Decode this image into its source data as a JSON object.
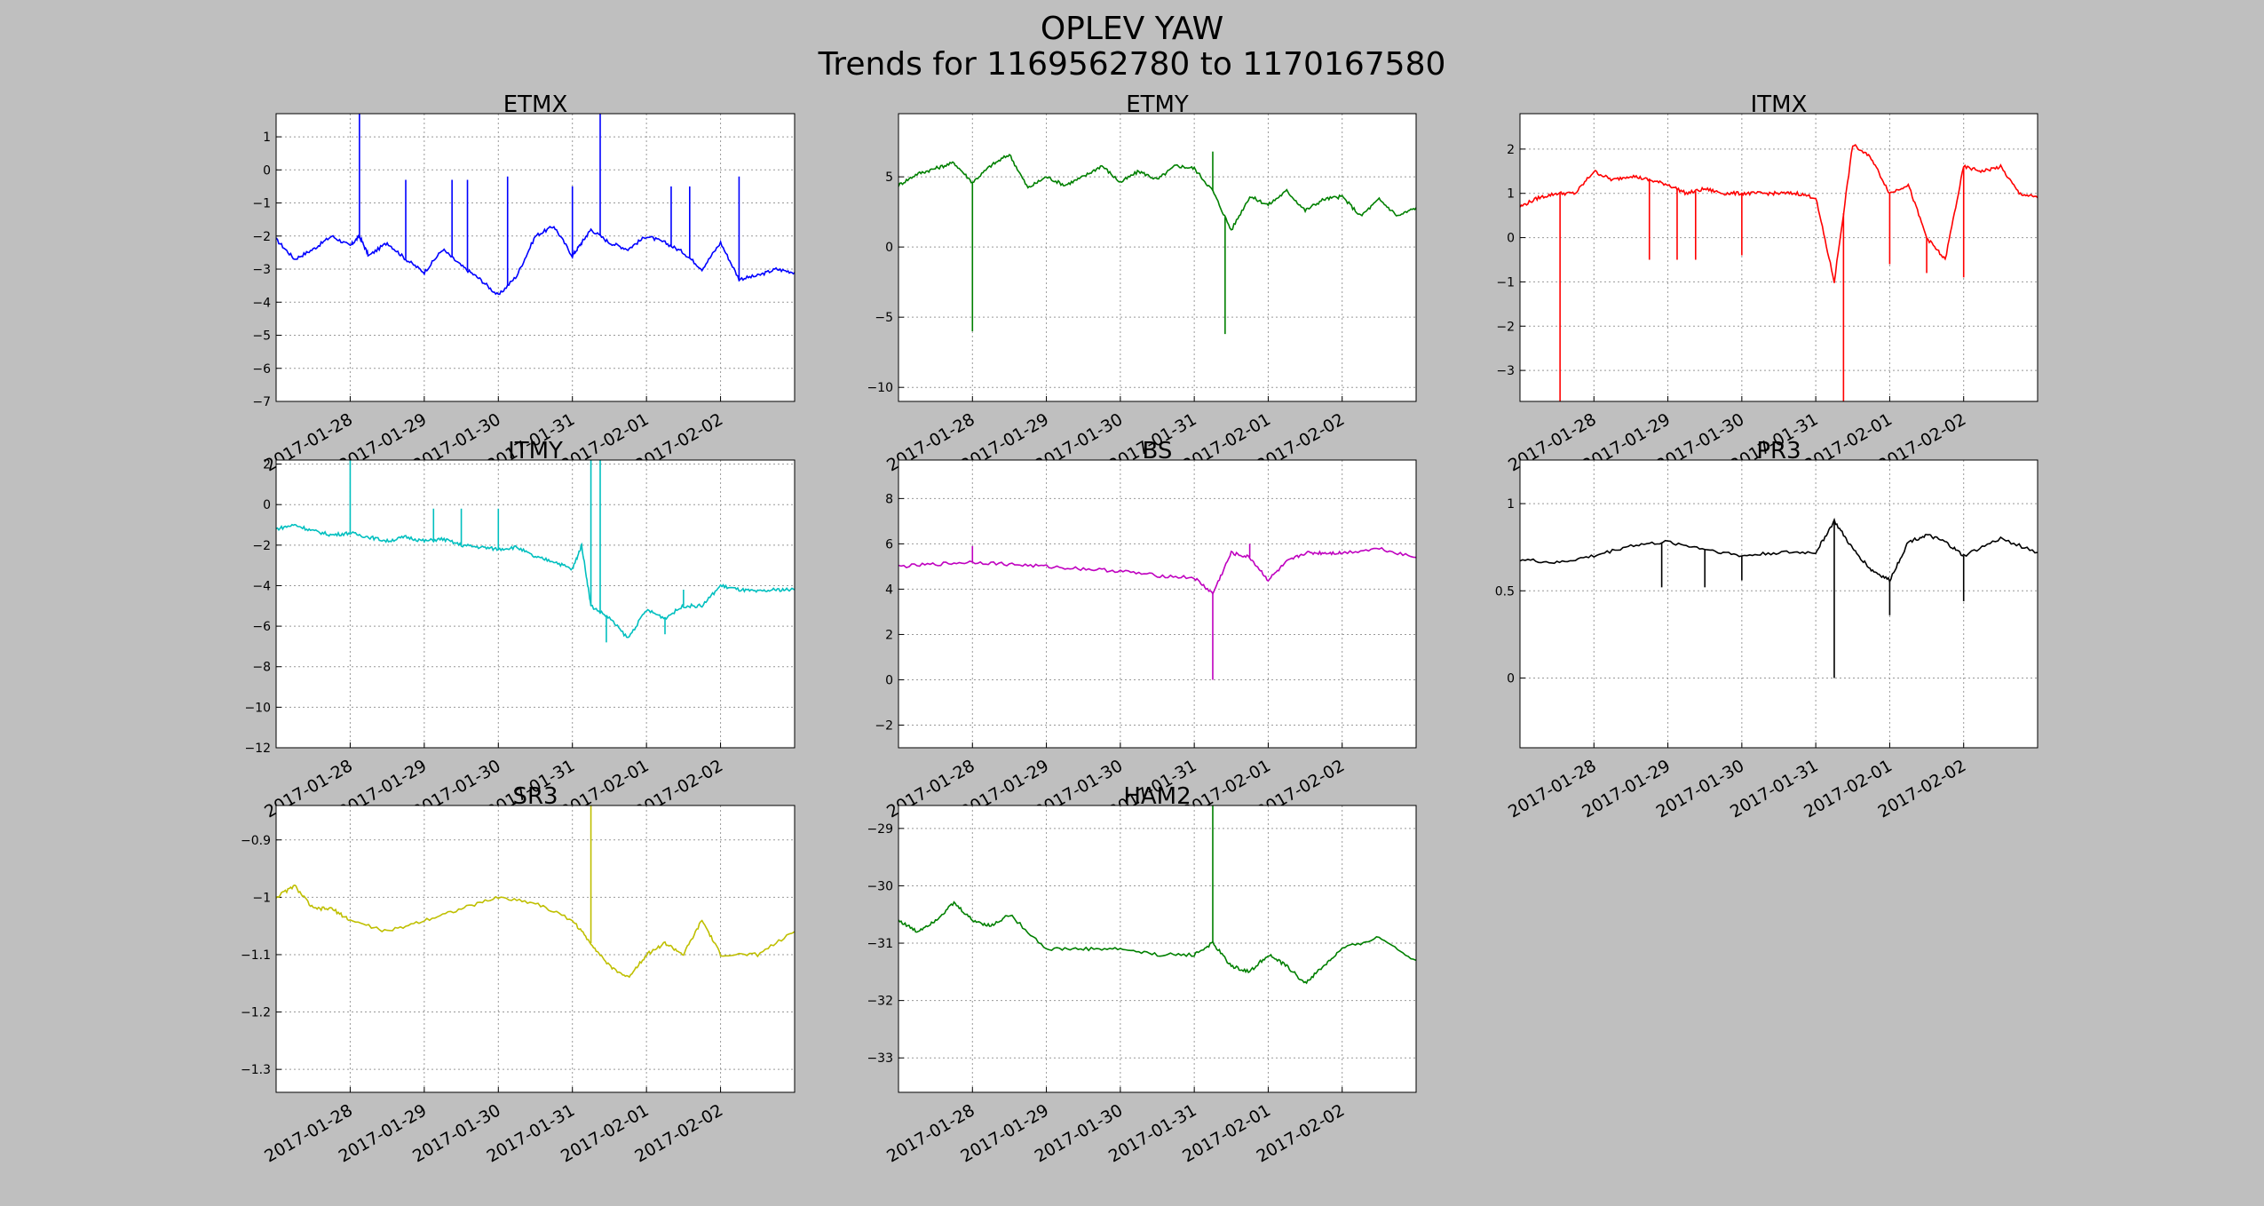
{
  "figure": {
    "title_line1": "OPLEV YAW",
    "title_line2": "Trends for 1169562780 to 1170167580",
    "background": "#bfbfbf"
  },
  "chart_data": [
    {
      "type": "line",
      "title": "ETMX",
      "color": "#0000ff",
      "grid": true,
      "xlim": [
        "2017-01-27T00:00",
        "2017-02-03T00:00"
      ],
      "xlim_gps": [
        1169562780,
        1170167580
      ],
      "xticks": [
        "2017-01-28",
        "2017-01-29",
        "2017-01-30",
        "2017-01-31",
        "2017-02-01",
        "2017-02-02"
      ],
      "yticks": [
        -7,
        -6,
        -5,
        -4,
        -3,
        -2,
        -1,
        0,
        1
      ],
      "ylim": [
        -7,
        1.7
      ],
      "x": [
        "2017-01-27T00:00",
        "2017-01-27T06:00",
        "2017-01-27T12:00",
        "2017-01-27T18:00",
        "2017-01-28T00:00",
        "2017-01-28T03:00",
        "2017-01-28T06:00",
        "2017-01-28T12:00",
        "2017-01-28T18:00",
        "2017-01-29T00:00",
        "2017-01-29T06:00",
        "2017-01-29T12:00",
        "2017-01-29T18:00",
        "2017-01-30T00:00",
        "2017-01-30T06:00",
        "2017-01-30T12:00",
        "2017-01-30T18:00",
        "2017-01-31T00:00",
        "2017-01-31T03:00",
        "2017-01-31T06:00",
        "2017-01-31T12:00",
        "2017-01-31T18:00",
        "2017-02-01T00:00",
        "2017-02-01T06:00",
        "2017-02-01T12:00",
        "2017-02-01T18:00",
        "2017-02-02T00:00",
        "2017-02-02T06:00",
        "2017-02-02T12:00",
        "2017-02-02T18:00",
        "2017-02-03T00:00"
      ],
      "y": [
        -2.1,
        -2.7,
        -2.4,
        -2.0,
        -2.3,
        -2.0,
        -2.6,
        -2.2,
        -2.7,
        -3.1,
        -2.4,
        -2.9,
        -3.3,
        -3.8,
        -3.2,
        -2.0,
        -1.7,
        -2.6,
        -2.2,
        -1.8,
        -2.2,
        -2.4,
        -2.0,
        -2.2,
        -2.5,
        -3.0,
        -2.2,
        -3.3,
        -3.2,
        -3.0,
        -3.1
      ],
      "spikes": [
        [
          "2017-01-28T03:00",
          1.7
        ],
        [
          "2017-01-28T18:00",
          -0.3
        ],
        [
          "2017-01-29T09:00",
          -0.3
        ],
        [
          "2017-01-29T14:00",
          -0.3
        ],
        [
          "2017-01-30T03:00",
          -0.2
        ],
        [
          "2017-01-31T00:00",
          -0.5
        ],
        [
          "2017-01-31T09:00",
          1.7
        ],
        [
          "2017-02-01T08:00",
          -0.5
        ],
        [
          "2017-02-01T14:00",
          -0.5
        ],
        [
          "2017-02-02T06:00",
          -0.2
        ]
      ]
    },
    {
      "type": "line",
      "title": "ETMY",
      "color": "#008000",
      "grid": true,
      "xlim": [
        "2017-01-27T00:00",
        "2017-02-03T00:00"
      ],
      "xlim_gps": [
        1169562780,
        1170167580
      ],
      "xticks": [
        "2017-01-28",
        "2017-01-29",
        "2017-01-30",
        "2017-01-31",
        "2017-02-01",
        "2017-02-02"
      ],
      "yticks": [
        -10,
        -5,
        0,
        5
      ],
      "ylim": [
        -11,
        9.5
      ],
      "x": [
        "2017-01-27T00:00",
        "2017-01-27T06:00",
        "2017-01-27T12:00",
        "2017-01-27T18:00",
        "2017-01-28T00:00",
        "2017-01-28T06:00",
        "2017-01-28T12:00",
        "2017-01-28T18:00",
        "2017-01-29T00:00",
        "2017-01-29T06:00",
        "2017-01-29T12:00",
        "2017-01-29T18:00",
        "2017-01-30T00:00",
        "2017-01-30T06:00",
        "2017-01-30T12:00",
        "2017-01-30T18:00",
        "2017-01-31T00:00",
        "2017-01-31T06:00",
        "2017-01-31T12:00",
        "2017-01-31T18:00",
        "2017-02-01T00:00",
        "2017-02-01T06:00",
        "2017-02-01T12:00",
        "2017-02-01T18:00",
        "2017-02-02T00:00",
        "2017-02-02T06:00",
        "2017-02-02T12:00",
        "2017-02-02T18:00",
        "2017-02-03T00:00"
      ],
      "y": [
        4.4,
        5.2,
        5.6,
        6.0,
        4.6,
        5.8,
        6.6,
        4.2,
        5.0,
        4.4,
        5.0,
        5.8,
        4.6,
        5.4,
        4.8,
        5.8,
        5.6,
        4.0,
        1.2,
        3.6,
        3.0,
        4.0,
        2.6,
        3.4,
        3.6,
        2.2,
        3.4,
        2.2,
        2.8
      ],
      "spikes": [
        [
          "2017-01-28T00:00",
          -6.0
        ],
        [
          "2017-01-31T06:00",
          6.8
        ],
        [
          "2017-01-31T10:00",
          -6.2
        ]
      ]
    },
    {
      "type": "line",
      "title": "ITMX",
      "color": "#ff0000",
      "grid": true,
      "xlim": [
        "2017-01-27T00:00",
        "2017-02-03T00:00"
      ],
      "xlim_gps": [
        1169562780,
        1170167580
      ],
      "xticks": [
        "2017-01-28",
        "2017-01-29",
        "2017-01-30",
        "2017-01-31",
        "2017-02-01",
        "2017-02-02"
      ],
      "yticks": [
        -3,
        -2,
        -1,
        0,
        1,
        2
      ],
      "ylim": [
        -3.7,
        2.8
      ],
      "x": [
        "2017-01-27T00:00",
        "2017-01-27T06:00",
        "2017-01-27T12:00",
        "2017-01-27T18:00",
        "2017-01-28T00:00",
        "2017-01-28T06:00",
        "2017-01-28T12:00",
        "2017-01-28T18:00",
        "2017-01-29T00:00",
        "2017-01-29T06:00",
        "2017-01-29T12:00",
        "2017-01-29T18:00",
        "2017-01-30T00:00",
        "2017-01-30T06:00",
        "2017-01-30T12:00",
        "2017-01-30T18:00",
        "2017-01-31T00:00",
        "2017-01-31T06:00",
        "2017-01-31T12:00",
        "2017-01-31T18:00",
        "2017-02-01T00:00",
        "2017-02-01T06:00",
        "2017-02-01T12:00",
        "2017-02-01T18:00",
        "2017-02-02T00:00",
        "2017-02-02T06:00",
        "2017-02-02T12:00",
        "2017-02-02T18:00",
        "2017-02-03T00:00"
      ],
      "y": [
        0.7,
        0.9,
        1.0,
        1.0,
        1.5,
        1.3,
        1.4,
        1.3,
        1.2,
        1.0,
        1.1,
        1.0,
        1.0,
        1.0,
        1.0,
        1.0,
        0.9,
        -1.0,
        2.1,
        1.8,
        1.0,
        1.2,
        0.0,
        -0.5,
        1.6,
        1.5,
        1.6,
        1.0,
        0.9
      ],
      "spikes": [
        [
          "2017-01-27T13:00",
          -3.7
        ],
        [
          "2017-01-28T18:00",
          -0.5
        ],
        [
          "2017-01-29T03:00",
          -0.5
        ],
        [
          "2017-01-29T09:00",
          -0.5
        ],
        [
          "2017-01-30T00:00",
          -0.4
        ],
        [
          "2017-01-31T09:00",
          -3.7
        ],
        [
          "2017-02-01T00:00",
          -0.6
        ],
        [
          "2017-02-01T12:00",
          -0.8
        ],
        [
          "2017-02-02T00:00",
          -0.9
        ]
      ]
    },
    {
      "type": "line",
      "title": "ITMY",
      "color": "#00bfbf",
      "grid": true,
      "xlim": [
        "2017-01-27T00:00",
        "2017-02-03T00:00"
      ],
      "xlim_gps": [
        1169562780,
        1170167580
      ],
      "xticks": [
        "2017-01-28",
        "2017-01-29",
        "2017-01-30",
        "2017-01-31",
        "2017-02-01",
        "2017-02-02"
      ],
      "yticks": [
        -12,
        -10,
        -8,
        -6,
        -4,
        -2,
        0,
        2
      ],
      "ylim": [
        -12,
        2.2
      ],
      "x": [
        "2017-01-27T00:00",
        "2017-01-27T06:00",
        "2017-01-27T12:00",
        "2017-01-27T18:00",
        "2017-01-28T00:00",
        "2017-01-28T06:00",
        "2017-01-28T12:00",
        "2017-01-28T18:00",
        "2017-01-29T00:00",
        "2017-01-29T06:00",
        "2017-01-29T12:00",
        "2017-01-29T18:00",
        "2017-01-30T00:00",
        "2017-01-30T06:00",
        "2017-01-30T12:00",
        "2017-01-30T18:00",
        "2017-01-31T00:00",
        "2017-01-31T03:00",
        "2017-01-31T06:00",
        "2017-01-31T12:00",
        "2017-01-31T18:00",
        "2017-02-01T00:00",
        "2017-02-01T06:00",
        "2017-02-01T12:00",
        "2017-02-01T18:00",
        "2017-02-02T00:00",
        "2017-02-02T06:00",
        "2017-02-02T12:00",
        "2017-02-02T18:00",
        "2017-02-03T00:00"
      ],
      "y": [
        -1.2,
        -1.0,
        -1.3,
        -1.5,
        -1.4,
        -1.6,
        -1.8,
        -1.6,
        -1.8,
        -1.7,
        -2.0,
        -2.1,
        -2.2,
        -2.1,
        -2.6,
        -2.8,
        -3.2,
        -2.0,
        -5.0,
        -5.6,
        -6.6,
        -5.2,
        -5.6,
        -5.0,
        -5.0,
        -4.0,
        -4.2,
        -4.3,
        -4.2,
        -4.2
      ],
      "spikes": [
        [
          "2017-01-28T00:00",
          2.2
        ],
        [
          "2017-01-29T03:00",
          -0.2
        ],
        [
          "2017-01-29T12:00",
          -0.2
        ],
        [
          "2017-01-30T00:00",
          -0.2
        ],
        [
          "2017-01-31T06:00",
          2.2
        ],
        [
          "2017-01-31T09:00",
          2.2
        ],
        [
          "2017-01-31T11:00",
          -6.8
        ],
        [
          "2017-02-01T06:00",
          -6.4
        ],
        [
          "2017-02-01T12:00",
          -4.2
        ]
      ]
    },
    {
      "type": "line",
      "title": "BS",
      "color": "#bf00bf",
      "grid": true,
      "xlim": [
        "2017-01-27T00:00",
        "2017-02-03T00:00"
      ],
      "xlim_gps": [
        1169562780,
        1170167580
      ],
      "xticks": [
        "2017-01-28",
        "2017-01-29",
        "2017-01-30",
        "2017-01-31",
        "2017-02-01",
        "2017-02-02"
      ],
      "yticks": [
        -2,
        0,
        2,
        4,
        6,
        8
      ],
      "ylim": [
        -3,
        9.7
      ],
      "x": [
        "2017-01-27T00:00",
        "2017-01-27T12:00",
        "2017-01-28T00:00",
        "2017-01-28T12:00",
        "2017-01-29T00:00",
        "2017-01-29T12:00",
        "2017-01-30T00:00",
        "2017-01-30T12:00",
        "2017-01-31T00:00",
        "2017-01-31T06:00",
        "2017-01-31T12:00",
        "2017-01-31T18:00",
        "2017-02-01T00:00",
        "2017-02-01T06:00",
        "2017-02-01T12:00",
        "2017-02-01T18:00",
        "2017-02-02T00:00",
        "2017-02-02T12:00",
        "2017-02-03T00:00"
      ],
      "y": [
        5.0,
        5.1,
        5.2,
        5.1,
        5.0,
        4.9,
        4.8,
        4.6,
        4.5,
        3.8,
        5.6,
        5.4,
        4.4,
        5.2,
        5.6,
        5.6,
        5.6,
        5.8,
        5.4
      ],
      "spikes": [
        [
          "2017-01-28T00:00",
          5.9
        ],
        [
          "2017-01-31T06:00",
          0.0
        ],
        [
          "2017-01-31T18:00",
          6.0
        ]
      ]
    },
    {
      "type": "line",
      "title": "PR3",
      "color": "#000000",
      "grid": true,
      "xlim": [
        "2017-01-27T00:00",
        "2017-02-03T00:00"
      ],
      "xlim_gps": [
        1169562780,
        1170167580
      ],
      "xticks": [
        "2017-01-28",
        "2017-01-29",
        "2017-01-30",
        "2017-01-31",
        "2017-02-01",
        "2017-02-02"
      ],
      "yticks": [
        0.0,
        0.5,
        1.0
      ],
      "ylim": [
        -0.4,
        1.25
      ],
      "x": [
        "2017-01-27T00:00",
        "2017-01-27T12:00",
        "2017-01-28T00:00",
        "2017-01-28T12:00",
        "2017-01-29T00:00",
        "2017-01-29T12:00",
        "2017-01-30T00:00",
        "2017-01-30T12:00",
        "2017-01-31T00:00",
        "2017-01-31T06:00",
        "2017-01-31T12:00",
        "2017-01-31T18:00",
        "2017-02-01T00:00",
        "2017-02-01T06:00",
        "2017-02-01T12:00",
        "2017-02-01T18:00",
        "2017-02-02T00:00",
        "2017-02-02T12:00",
        "2017-02-03T00:00"
      ],
      "y": [
        0.68,
        0.66,
        0.7,
        0.76,
        0.78,
        0.74,
        0.7,
        0.72,
        0.72,
        0.9,
        0.74,
        0.62,
        0.56,
        0.78,
        0.82,
        0.78,
        0.7,
        0.8,
        0.72
      ],
      "spikes": [
        [
          "2017-01-28T22:00",
          0.52
        ],
        [
          "2017-01-29T12:00",
          0.52
        ],
        [
          "2017-01-30T00:00",
          0.56
        ],
        [
          "2017-01-31T06:00",
          0.0
        ],
        [
          "2017-02-01T00:00",
          0.36
        ],
        [
          "2017-02-02T00:00",
          0.44
        ]
      ]
    },
    {
      "type": "line",
      "title": "SR3",
      "color": "#bfbf00",
      "grid": true,
      "xlim": [
        "2017-01-27T00:00",
        "2017-02-03T00:00"
      ],
      "xlim_gps": [
        1169562780,
        1170167580
      ],
      "xticks": [
        "2017-01-28",
        "2017-01-29",
        "2017-01-30",
        "2017-01-31",
        "2017-02-01",
        "2017-02-02"
      ],
      "yticks": [
        -1.3,
        -1.2,
        -1.1,
        -1.0,
        -0.9
      ],
      "ylim": [
        -1.34,
        -0.84
      ],
      "x": [
        "2017-01-27T00:00",
        "2017-01-27T06:00",
        "2017-01-27T12:00",
        "2017-01-27T18:00",
        "2017-01-28T00:00",
        "2017-01-28T12:00",
        "2017-01-29T00:00",
        "2017-01-29T12:00",
        "2017-01-30T00:00",
        "2017-01-30T12:00",
        "2017-01-31T00:00",
        "2017-01-31T06:00",
        "2017-01-31T12:00",
        "2017-01-31T18:00",
        "2017-02-01T00:00",
        "2017-02-01T06:00",
        "2017-02-01T12:00",
        "2017-02-01T18:00",
        "2017-02-02T00:00",
        "2017-02-02T12:00",
        "2017-02-03T00:00"
      ],
      "y": [
        -1.0,
        -0.98,
        -1.02,
        -1.02,
        -1.04,
        -1.06,
        -1.04,
        -1.02,
        -1.0,
        -1.01,
        -1.04,
        -1.08,
        -1.12,
        -1.14,
        -1.1,
        -1.08,
        -1.1,
        -1.04,
        -1.1,
        -1.1,
        -1.06
      ],
      "spikes": [
        [
          "2017-01-31T06:00",
          -0.84
        ]
      ]
    },
    {
      "type": "line",
      "title": "HAM2",
      "color": "#008000",
      "grid": true,
      "xlim": [
        "2017-01-27T00:00",
        "2017-02-03T00:00"
      ],
      "xlim_gps": [
        1169562780,
        1170167580
      ],
      "xticks": [
        "2017-01-28",
        "2017-01-29",
        "2017-01-30",
        "2017-01-31",
        "2017-02-01",
        "2017-02-02"
      ],
      "yticks": [
        -33,
        -32,
        -31,
        -30,
        -29
      ],
      "ylim": [
        -33.6,
        -28.6
      ],
      "x": [
        "2017-01-27T00:00",
        "2017-01-27T06:00",
        "2017-01-27T12:00",
        "2017-01-27T18:00",
        "2017-01-28T00:00",
        "2017-01-28T06:00",
        "2017-01-28T12:00",
        "2017-01-29T00:00",
        "2017-01-29T12:00",
        "2017-01-30T00:00",
        "2017-01-30T12:00",
        "2017-01-31T00:00",
        "2017-01-31T06:00",
        "2017-01-31T12:00",
        "2017-01-31T18:00",
        "2017-02-01T00:00",
        "2017-02-01T06:00",
        "2017-02-01T12:00",
        "2017-02-01T18:00",
        "2017-02-02T00:00",
        "2017-02-02T12:00",
        "2017-02-03T00:00"
      ],
      "y": [
        -30.6,
        -30.8,
        -30.6,
        -30.3,
        -30.6,
        -30.7,
        -30.5,
        -31.1,
        -31.1,
        -31.1,
        -31.2,
        -31.2,
        -31.0,
        -31.4,
        -31.5,
        -31.2,
        -31.4,
        -31.7,
        -31.4,
        -31.1,
        -30.9,
        -31.3
      ],
      "spikes": [
        [
          "2017-01-31T06:00",
          -28.6
        ]
      ]
    }
  ]
}
